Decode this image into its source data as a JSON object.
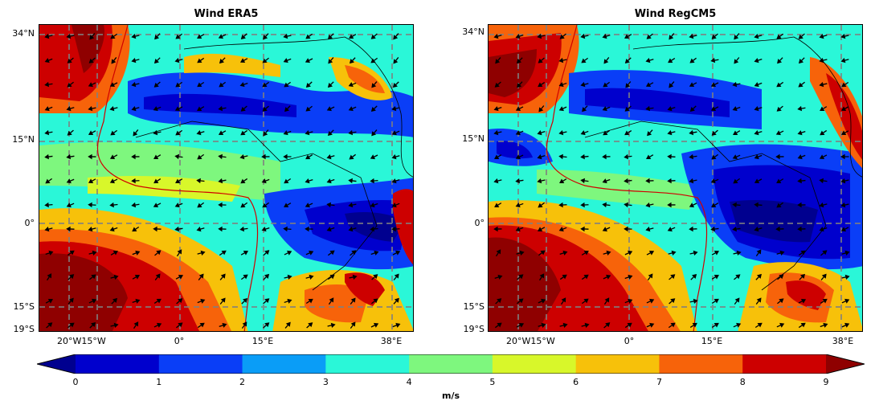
{
  "panels": [
    {
      "title": "Wind ERA5"
    },
    {
      "title": "Wind RegCM5"
    }
  ],
  "lat_labels": [
    "34°N",
    "15°N",
    "0°",
    "15°S",
    "19°S"
  ],
  "lon_labels": [
    "20°W15°W",
    "0°",
    "15°E",
    "38°E"
  ],
  "colorbar": {
    "ticks": [
      "0",
      "1",
      "2",
      "3",
      "4",
      "5",
      "6",
      "7",
      "8",
      "9"
    ],
    "unit": "m/s",
    "colors": [
      "#00008f",
      "#0000cd",
      "#0a3ef7",
      "#0a9df7",
      "#2af7d8",
      "#7ef77e",
      "#d8f72a",
      "#f7c10a",
      "#f7630a",
      "#cd0000",
      "#8f0000"
    ]
  }
}
